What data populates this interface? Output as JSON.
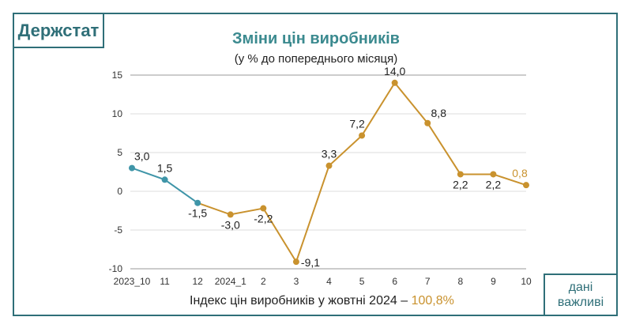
{
  "logo": "Держстат",
  "footer": {
    "text": "Індекс цін виробників у жовтні 2024 – ",
    "value": "100,8%"
  },
  "badge": {
    "line1": "дані",
    "line2": "важливі"
  },
  "chart_data": {
    "type": "line",
    "title": "Зміни цін виробників",
    "subtitle": "(у % до попереднього місяця)",
    "categories": [
      "2023_10",
      "11",
      "12",
      "2024_1",
      "2",
      "3",
      "4",
      "5",
      "6",
      "7",
      "8",
      "9",
      "10"
    ],
    "values": [
      3.0,
      1.5,
      -1.5,
      -3.0,
      -2.2,
      -9.1,
      3.3,
      7.2,
      14.0,
      8.8,
      2.2,
      2.2,
      0.8
    ],
    "value_labels": [
      "3,0",
      "1,5",
      "-1,5",
      "-3,0",
      "-2,2",
      "-9,1",
      "3,3",
      "7,2",
      "14,0",
      "8,8",
      "2,2",
      "2,2",
      "0,8"
    ],
    "ylim": [
      -10,
      15
    ],
    "yticks": [
      -10,
      -5,
      0,
      5,
      10,
      15
    ],
    "ytick_labels": [
      "-10",
      "-5",
      "0",
      "5",
      "10",
      "15"
    ],
    "grid": true,
    "colors": {
      "series_2023": "#3f95a8",
      "series_2024": "#c9922e",
      "last_label": "#c9922e"
    }
  }
}
